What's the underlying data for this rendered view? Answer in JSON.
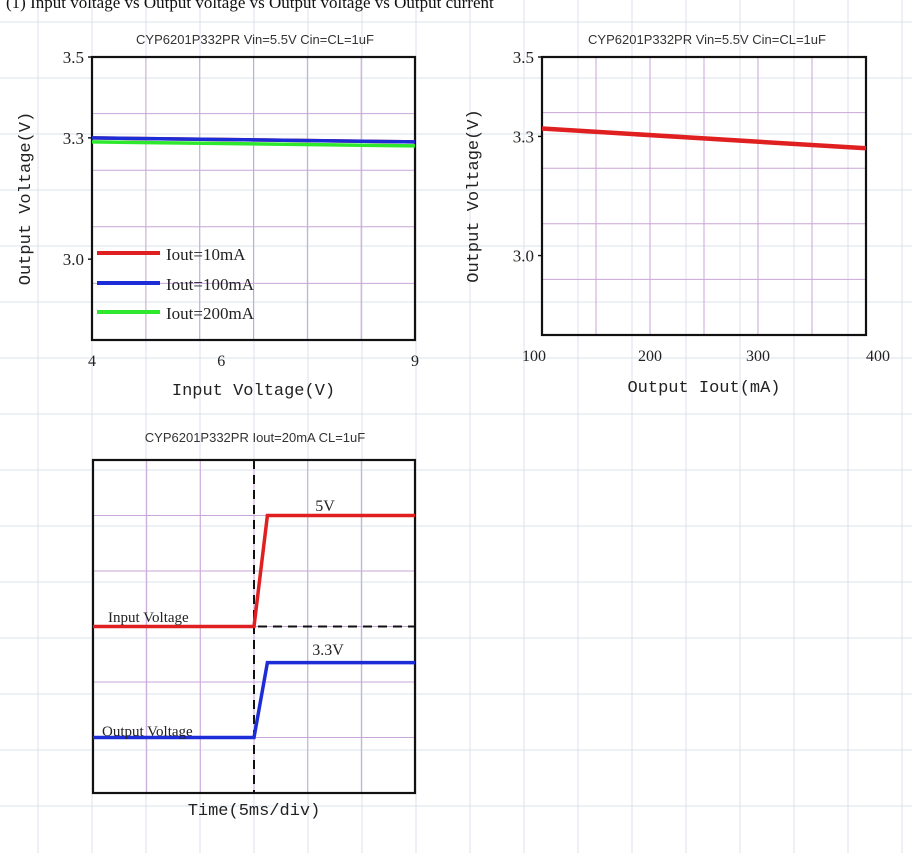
{
  "header_text": "(1) Input voltage vs Output voltage vs Output voltage vs Output current",
  "colors": {
    "red": "#e02020",
    "blue": "#1c2cd6",
    "green": "#2ee82e",
    "grid": "#c9a6d8",
    "page_grid": "#dbe1ea",
    "frame": "#111111"
  },
  "chart_data": [
    {
      "type": "line",
      "title": "CYP6201P332PR Vin=5.5V Cin=CL=1uF",
      "xlabel": "Input Voltage(V)",
      "ylabel": "Output Voltage(V)",
      "xlim": [
        4,
        9
      ],
      "ylim": [
        2.8,
        3.5
      ],
      "x_ticks": [
        4,
        6,
        9
      ],
      "x_tick_labels": [
        "4",
        "6",
        "9"
      ],
      "y_ticks": [
        3.0,
        3.3,
        3.5
      ],
      "y_tick_labels": [
        "3.0",
        "3.3",
        "3.5"
      ],
      "grid": true,
      "legend_position": "bottom-left",
      "series": [
        {
          "name": "Iout=10mA",
          "x": [
            4,
            9
          ],
          "y": [
            3.3,
            3.29
          ]
        },
        {
          "name": "Iout=100mA",
          "x": [
            4,
            9
          ],
          "y": [
            3.3,
            3.29
          ]
        },
        {
          "name": "Iout=200mA",
          "x": [
            4,
            9
          ],
          "y": [
            3.29,
            3.28
          ]
        }
      ]
    },
    {
      "type": "line",
      "title": "CYP6201P332PR Vin=5.5V Cin=CL=1uF",
      "xlabel": "Output Iout(mA)",
      "ylabel": "Output Voltage(V)",
      "xlim": [
        100,
        400
      ],
      "ylim": [
        2.8,
        3.5
      ],
      "x_ticks": [
        100,
        200,
        300,
        400
      ],
      "x_tick_labels": [
        "100",
        "200",
        "300",
        "400"
      ],
      "y_ticks": [
        3.0,
        3.3,
        3.5
      ],
      "y_tick_labels": [
        "3.0",
        "3.3",
        "3.5"
      ],
      "grid": true,
      "series": [
        {
          "x": [
            100,
            400
          ],
          "y": [
            3.32,
            3.27
          ]
        }
      ]
    },
    {
      "type": "line",
      "title": "CYP6201P332PR Iout=20mA CL=1uF",
      "xlabel": "Time(5ms/div)",
      "ylabel": "",
      "xlim": [
        0,
        6
      ],
      "ylim": [
        0,
        6
      ],
      "grid": true,
      "annotations": [
        "5V",
        "3.3V",
        "Input Voltage",
        "Output Voltage"
      ],
      "series": [
        {
          "name": "Input Voltage",
          "x": [
            0,
            3,
            3.25,
            6
          ],
          "y": [
            3.0,
            3.0,
            5.0,
            5.0
          ]
        },
        {
          "name": "Output Voltage",
          "x": [
            0,
            3,
            3.25,
            6
          ],
          "y": [
            1.0,
            1.0,
            2.35,
            2.35
          ]
        }
      ]
    }
  ]
}
